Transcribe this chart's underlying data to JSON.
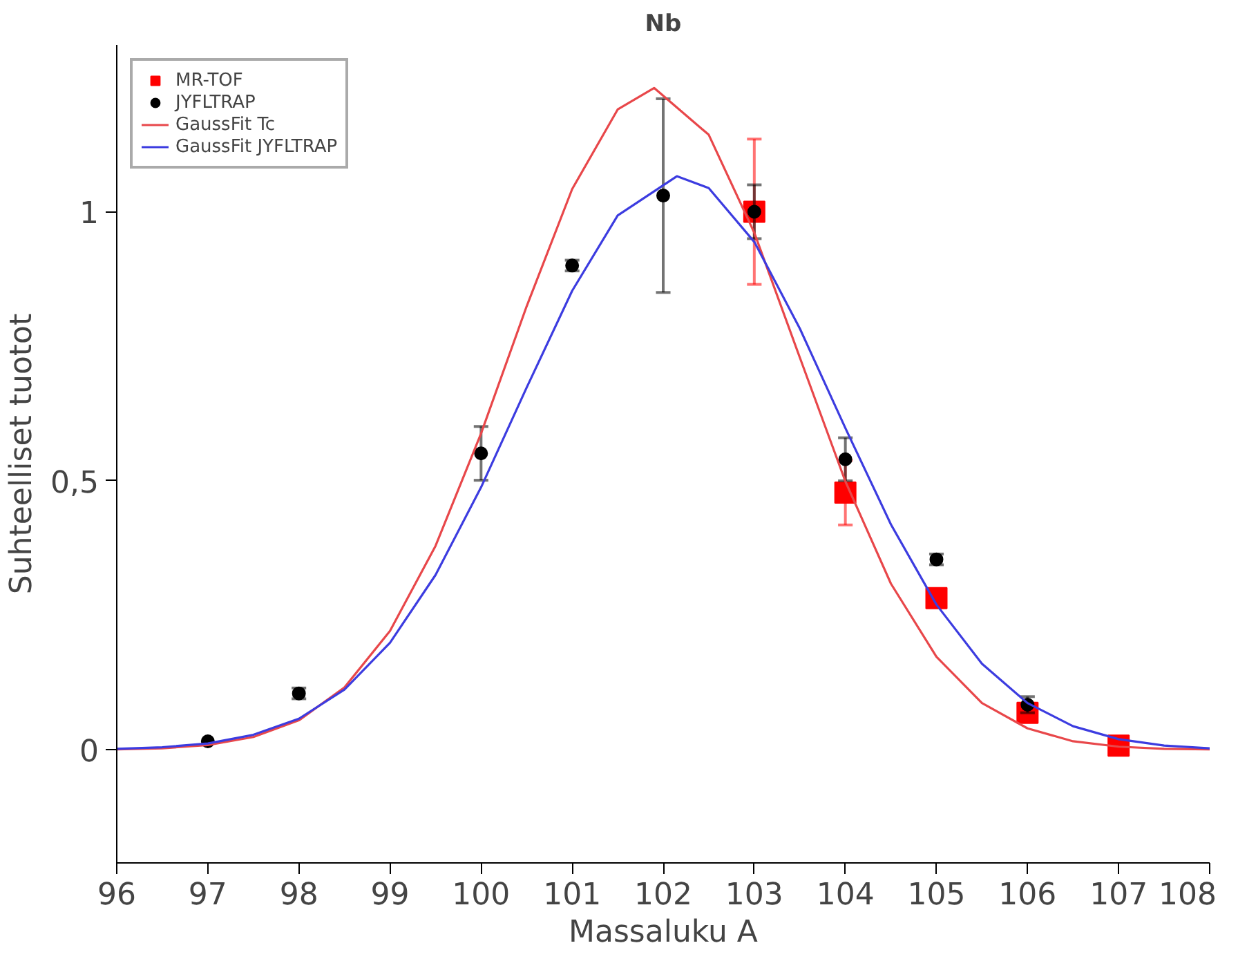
{
  "chart_data": {
    "type": "scatter",
    "title": "Nb",
    "xlabel": "Massaluku A",
    "ylabel": "Suhteelliset tuotot",
    "xlim": [
      96,
      108
    ],
    "xticks": [
      96,
      97,
      98,
      99,
      100,
      101,
      102,
      103,
      104,
      105,
      106,
      107,
      108
    ],
    "ylim": [
      -0.21,
      1.31
    ],
    "yticks": [
      0,
      {
        "value": 0.5,
        "label": "0,5"
      },
      1
    ],
    "grid": false,
    "legend": "top left",
    "series": [
      {
        "name": "MR-TOF",
        "marker": "square",
        "color": "#ff0000",
        "x": [
          103,
          104,
          105,
          106,
          107
        ],
        "values": [
          1.0,
          0.478,
          0.282,
          0.069,
          0.008
        ],
        "errors": [
          0.135,
          0.06,
          0.015,
          null,
          null
        ]
      },
      {
        "name": "JYFLTRAP",
        "marker": "circle",
        "color": "#000000",
        "x": [
          97,
          98,
          100,
          101,
          102,
          103,
          104,
          105,
          106
        ],
        "values": [
          0.016,
          0.105,
          0.551,
          0.9,
          1.03,
          1.0,
          0.54,
          0.354,
          0.084
        ],
        "errors": [
          null,
          0.01,
          0.05,
          0.01,
          0.18,
          0.05,
          0.04,
          0.01,
          0.015
        ]
      },
      {
        "name": "GaussFit Tc",
        "type": "line",
        "color": "#e8474a",
        "x": [
          96,
          96.5,
          97,
          97.5,
          98,
          98.5,
          99,
          99.5,
          100,
          100.5,
          101,
          101.5,
          101.9,
          102.5,
          103,
          103.5,
          104,
          104.5,
          105,
          105.5,
          106,
          106.5,
          107,
          107.5,
          108
        ],
        "values": [
          0.001,
          0.003,
          0.009,
          0.024,
          0.055,
          0.116,
          0.221,
          0.379,
          0.588,
          0.824,
          1.042,
          1.19,
          1.23,
          1.143,
          0.961,
          0.729,
          0.499,
          0.309,
          0.173,
          0.087,
          0.04,
          0.016,
          0.006,
          0.002,
          0.001
        ]
      },
      {
        "name": "GaussFit JYFLTRAP",
        "type": "line",
        "color": "#3c3ce0",
        "x": [
          96,
          96.5,
          97,
          97.5,
          98,
          98.5,
          99,
          99.5,
          100,
          100.5,
          101,
          101.5,
          102.15,
          102.5,
          103,
          103.5,
          104,
          104.5,
          105,
          105.5,
          106,
          106.5,
          107,
          107.5,
          108
        ],
        "values": [
          0.002,
          0.005,
          0.012,
          0.028,
          0.058,
          0.112,
          0.199,
          0.325,
          0.488,
          0.673,
          0.853,
          0.993,
          1.066,
          1.044,
          0.944,
          0.783,
          0.598,
          0.419,
          0.27,
          0.16,
          0.087,
          0.044,
          0.02,
          0.008,
          0.003
        ]
      }
    ]
  }
}
